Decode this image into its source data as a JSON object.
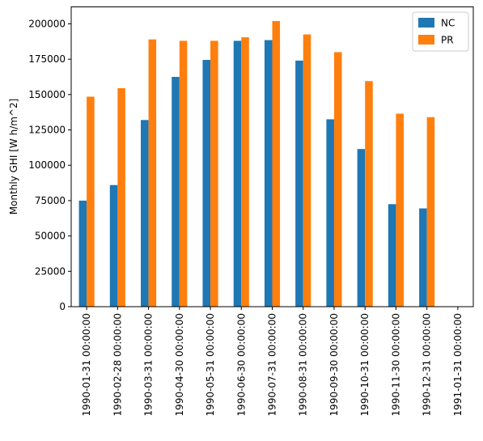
{
  "chart_data": {
    "type": "bar",
    "title": "",
    "xlabel": "",
    "ylabel": "Monthly GHI [W h/m^2]",
    "ylim": [
      0,
      212000
    ],
    "yticks": [
      0,
      25000,
      50000,
      75000,
      100000,
      125000,
      150000,
      175000,
      200000
    ],
    "ytick_labels": [
      "0",
      "25000",
      "50000",
      "75000",
      "100000",
      "125000",
      "150000",
      "175000",
      "200000"
    ],
    "grid": false,
    "legend_position": "top-right",
    "categories": [
      "1990-01-31 00:00:00",
      "1990-02-28 00:00:00",
      "1990-03-31 00:00:00",
      "1990-04-30 00:00:00",
      "1990-05-31 00:00:00",
      "1990-06-30 00:00:00",
      "1990-07-31 00:00:00",
      "1990-08-31 00:00:00",
      "1990-09-30 00:00:00",
      "1990-10-31 00:00:00",
      "1990-11-30 00:00:00",
      "1990-12-31 00:00:00",
      "1991-01-31 00:00:00"
    ],
    "series": [
      {
        "name": "NC",
        "color": "#1f77b4",
        "values": [
          75000,
          86000,
          132000,
          162500,
          174500,
          188000,
          188500,
          174000,
          132500,
          111500,
          72500,
          69500,
          0
        ]
      },
      {
        "name": "PR",
        "color": "#ff7f0e",
        "values": [
          148500,
          154500,
          189000,
          188000,
          188000,
          190500,
          202000,
          192500,
          180000,
          159500,
          136500,
          134000,
          0
        ]
      }
    ]
  }
}
